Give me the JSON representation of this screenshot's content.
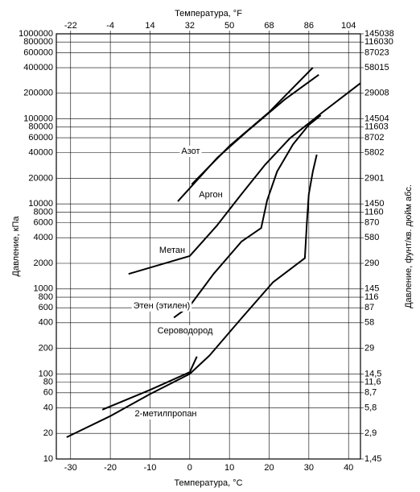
{
  "chart_data": {
    "type": "line",
    "title": "Температура, °F",
    "x_label": "Температура, °C",
    "y_label": "Давление, кПа",
    "y2_label": "Давление, фунт/кв. дюйм абс.",
    "xlim": [
      -33.6,
      43
    ],
    "xticks": [
      -30,
      -20,
      -10,
      0,
      10,
      20,
      30,
      40
    ],
    "x2lim": [
      -28.5,
      109.4
    ],
    "x2ticks": [
      -22,
      -4,
      14,
      32,
      50,
      68,
      86,
      104
    ],
    "ylim": [
      10,
      1000000
    ],
    "y_scale": "log",
    "yticks": [
      10,
      20,
      40,
      60,
      80,
      100,
      200,
      400,
      600,
      800,
      1000,
      2000,
      4000,
      6000,
      8000,
      10000,
      20000,
      40000,
      60000,
      80000,
      100000,
      200000,
      400000,
      600000,
      800000,
      1000000
    ],
    "y2lim": [
      1.45038,
      145038
    ],
    "y2ticks": [
      {
        "value": 1.45,
        "label": "1,45"
      },
      {
        "value": 2.9,
        "label": "2,9"
      },
      {
        "value": 5.8,
        "label": "5,8"
      },
      {
        "value": 8.7,
        "label": "8,7"
      },
      {
        "value": 11.6,
        "label": "11,6"
      },
      {
        "value": 14.5,
        "label": "14,5"
      },
      29,
      58,
      87,
      116,
      145,
      290,
      580,
      870,
      1160,
      1450,
      2901,
      5802,
      8702,
      11603,
      14504,
      29008,
      58015,
      87023,
      116030,
      145038
    ],
    "grid": true,
    "series": [
      {
        "name": "Азот",
        "color": "#000000",
        "x": [
          -3,
          7,
          15,
          24,
          32.5
        ],
        "values": [
          10700,
          35000,
          75000,
          170000,
          330000
        ]
      },
      {
        "name": "Аргон",
        "color": "#000000",
        "x": [
          0.5,
          10,
          20,
          31
        ],
        "values": [
          17000,
          48000,
          120000,
          400000
        ]
      },
      {
        "name": "Метан",
        "color": "#000000",
        "x": [
          -15.4,
          0,
          6.9,
          13,
          19,
          25.2,
          33.3,
          43
        ],
        "values": [
          1500,
          2440,
          5600,
          13000,
          29000,
          59000,
          118000,
          263000
        ]
      },
      {
        "name": "Этен (этилен)",
        "color": "#000000",
        "x": [
          -4,
          0,
          6,
          13,
          18,
          19.5,
          22,
          26,
          30,
          33
        ],
        "values": [
          460,
          630,
          1500,
          3600,
          5200,
          11000,
          24000,
          50000,
          85000,
          110000
        ]
      },
      {
        "name": "Сероводород",
        "color": "#000000",
        "x": [
          -31,
          -20,
          -10,
          0,
          5,
          13,
          21,
          29,
          29.5,
          30,
          31,
          32
        ],
        "values": [
          18,
          32,
          58,
          100,
          165,
          450,
          1200,
          2300,
          6000,
          13000,
          24000,
          38000
        ]
      },
      {
        "name": "2-метилпропан",
        "color": "#000000",
        "x": [
          -22,
          -10,
          0,
          1.8
        ],
        "values": [
          38,
          65,
          105,
          160
        ]
      }
    ]
  }
}
